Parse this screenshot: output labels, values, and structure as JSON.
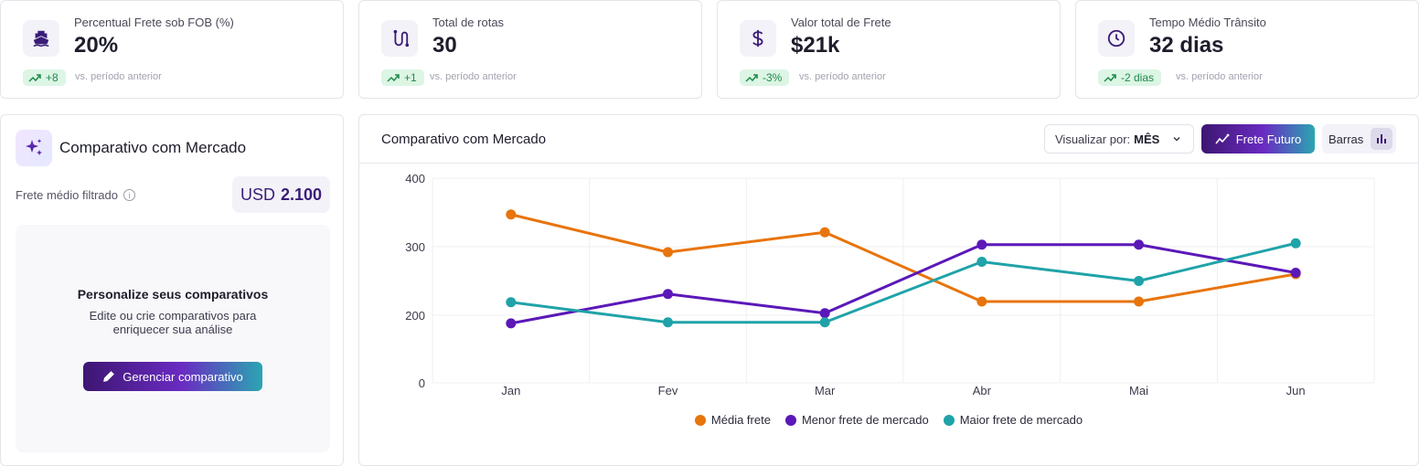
{
  "kpis": [
    {
      "icon": "ship-icon",
      "label": "Percentual Frete sob FOB (%)",
      "value": "20%",
      "delta": "+8",
      "vs": "vs. período anterior"
    },
    {
      "icon": "route-icon",
      "label": "Total de rotas",
      "value": "30",
      "delta": "+1",
      "vs": "vs. período anterior"
    },
    {
      "icon": "dollar-icon",
      "label": "Valor total de Frete",
      "value": "$21k",
      "delta": "-3%",
      "vs": "vs. período anterior"
    },
    {
      "icon": "clock-icon",
      "label": "Tempo Médio Trânsito",
      "value": "32 dias",
      "delta": "-2 dias",
      "vs": "vs. período anterior"
    }
  ],
  "side": {
    "title": "Comparativo com Mercado",
    "frete_label": "Frete médio filtrado",
    "info_glyph": "i",
    "usd_currency": "USD",
    "usd_value": "2.100",
    "empty_title": "Personalize seus comparativos",
    "empty_line1": "Edite ou crie comparativos para",
    "empty_line2": "enriquecer sua análise",
    "button_label": "Gerenciar comparativo"
  },
  "chart_panel": {
    "title": "Comparativo com Mercado",
    "select_prefix": "Visualizar por:",
    "select_value": "MÊS",
    "frete_futuro_label": "Frete Futuro",
    "barras_label": "Barras"
  },
  "colors": {
    "orange": "#e8740c",
    "purple": "#5b18b8",
    "teal": "#1fa3a8"
  },
  "chart_data": {
    "type": "line",
    "title": "Comparativo com Mercado",
    "categories": [
      "Jan",
      "Fev",
      "Mar",
      "Abr",
      "Mai",
      "Jun"
    ],
    "y_ticks": [
      "0",
      "200",
      "300",
      "400"
    ],
    "grid": true,
    "legend": "bottom",
    "series": [
      {
        "name": "Média frete",
        "color": "#e8740c",
        "values": [
          347,
          292,
          321,
          220,
          220,
          260
        ]
      },
      {
        "name": "Menor frete de mercado",
        "color": "#5b18b8",
        "values": [
          176,
          231,
          203,
          303,
          303,
          262
        ]
      },
      {
        "name": "Maior frete de mercado",
        "color": "#1fa3a8",
        "values": [
          219,
          179,
          179,
          278,
          250,
          305
        ]
      }
    ]
  }
}
